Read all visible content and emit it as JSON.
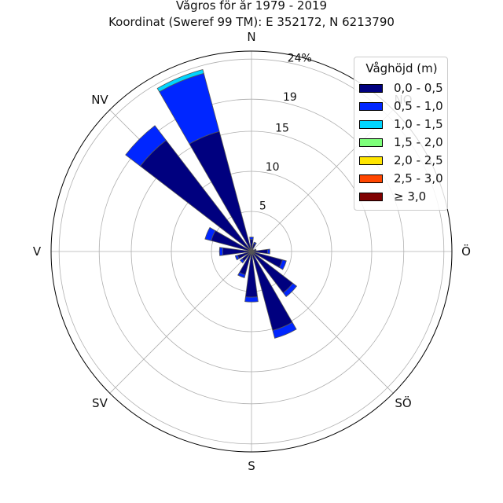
{
  "title_line1": "Vågros för år 1979 - 2019",
  "title_line2": "Koordinat (Sweref 99 TM): E 352172, N 6213790",
  "directions": [
    "N",
    "NO",
    "Ö",
    "SÖ",
    "S",
    "SV",
    "V",
    "NV"
  ],
  "legend": {
    "title": "Våghöjd (m)",
    "items": [
      {
        "label": "0,0 - 0,5",
        "color": "#00007f"
      },
      {
        "label": "0,5 - 1,0",
        "color": "#0026ff"
      },
      {
        "label": "1,0 - 1,5",
        "color": "#00d5ff"
      },
      {
        "label": "1,5 - 2,0",
        "color": "#7dff7a"
      },
      {
        "label": "2,0 - 2,5",
        "color": "#ffe500"
      },
      {
        "label": "2,5 - 3,0",
        "color": "#ff4600"
      },
      {
        "label": "≥ 3,0",
        "color": "#7f0000"
      }
    ]
  },
  "chart_data": {
    "type": "windrose",
    "title": "Vågros för år 1979 - 2019",
    "subtitle": "Koordinat (Sweref 99 TM): E 352172, N 6213790",
    "r_ticks": [
      5,
      10,
      15,
      19,
      24
    ],
    "r_tick_labels": [
      "5",
      "10",
      "15",
      "19",
      "24%"
    ],
    "rmax": 25,
    "sector_width_deg": 15,
    "series_names": [
      "0,0 - 0,5",
      "0,5 - 1,0",
      "1,0 - 1,5",
      "1,5 - 2,0",
      "2,0 - 2,5",
      "2,5 - 3,0",
      "≥ 3,0"
    ],
    "sectors": [
      {
        "direction_deg": 0,
        "values": [
          1.5,
          0.3,
          0,
          0,
          0,
          0,
          0
        ]
      },
      {
        "direction_deg": 22.5,
        "values": [
          1.0,
          0.2,
          0,
          0,
          0,
          0,
          0
        ]
      },
      {
        "direction_deg": 45,
        "values": [
          0.3,
          0,
          0,
          0,
          0,
          0,
          0
        ]
      },
      {
        "direction_deg": 67.5,
        "values": [
          0.6,
          0,
          0,
          0,
          0,
          0,
          0
        ]
      },
      {
        "direction_deg": 90,
        "values": [
          2.0,
          0.3,
          0,
          0,
          0,
          0,
          0
        ]
      },
      {
        "direction_deg": 112.5,
        "values": [
          4.0,
          0.5,
          0,
          0,
          0,
          0,
          0
        ]
      },
      {
        "direction_deg": 135,
        "values": [
          6.5,
          0.6,
          0,
          0,
          0,
          0,
          0
        ]
      },
      {
        "direction_deg": 157.5,
        "values": [
          10.2,
          1.0,
          0,
          0,
          0,
          0,
          0
        ]
      },
      {
        "direction_deg": 180,
        "values": [
          5.7,
          0.6,
          0,
          0,
          0,
          0,
          0
        ]
      },
      {
        "direction_deg": 202.5,
        "values": [
          3.0,
          0.4,
          0,
          0,
          0,
          0,
          0
        ]
      },
      {
        "direction_deg": 225,
        "values": [
          1.5,
          0.3,
          0,
          0,
          0,
          0,
          0
        ]
      },
      {
        "direction_deg": 247.5,
        "values": [
          1.8,
          0.3,
          0,
          0,
          0,
          0,
          0
        ]
      },
      {
        "direction_deg": 270,
        "values": [
          3.6,
          0.4,
          0,
          0,
          0,
          0,
          0
        ]
      },
      {
        "direction_deg": 292.5,
        "values": [
          5.2,
          0.8,
          0,
          0,
          0,
          0,
          0
        ]
      },
      {
        "direction_deg": 315,
        "values": [
          17.5,
          2.3,
          0,
          0,
          0,
          0,
          0
        ]
      },
      {
        "direction_deg": 337.5,
        "values": [
          15.5,
          7.5,
          0.5,
          0,
          0,
          0,
          0
        ]
      },
      {
        "direction_deg": 352.5,
        "values": [
          0.4,
          0,
          0,
          0,
          0,
          0,
          0
        ]
      }
    ]
  }
}
